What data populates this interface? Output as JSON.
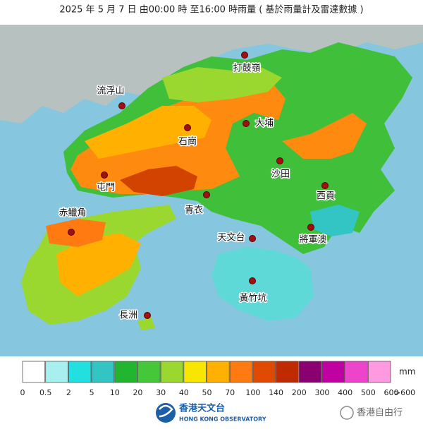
{
  "header": {
    "title": "2025 年  5 月 7  日 由00:00 時 至16:00  時雨量 ( 基於雨量計及雷達數據 )"
  },
  "places": [
    "打鼓嶺",
    "流浮山",
    "大埔",
    "石崗",
    "屯門",
    "沙田",
    "西貢",
    "赤鱲角",
    "青衣",
    "天文台",
    "將軍澳",
    "黃竹坑",
    "長洲"
  ],
  "legend": {
    "unit": "mm",
    "labels": [
      "0",
      "0.5",
      "2",
      "5",
      "10",
      "20",
      "30",
      "40",
      "50",
      "70",
      "100",
      "140",
      "200",
      "300",
      "400",
      "500",
      "600",
      ">600"
    ],
    "colors": [
      "#ffffff",
      "#a8f0f0",
      "#22e0e0",
      "#33c4c4",
      "#22b530",
      "#44c83a",
      "#9ad830",
      "#f7e600",
      "#ffb000",
      "#ff7a10",
      "#e04a00",
      "#c02a00",
      "#8a0070",
      "#c000a0",
      "#ee44cc",
      "#ff99e0"
    ]
  },
  "footer": {
    "logo_zh": "香港天文台",
    "logo_en": "HONG KONG OBSERVATORY",
    "watermark": "香港自由行"
  }
}
